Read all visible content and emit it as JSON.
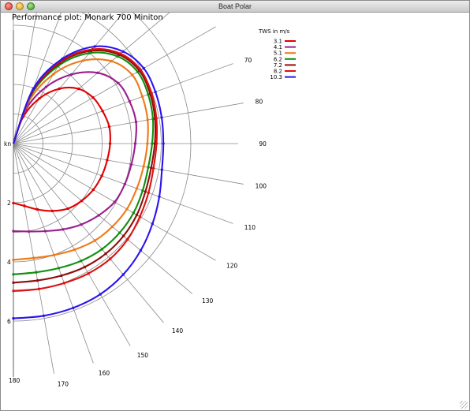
{
  "window": {
    "title": "Boat Polar",
    "buttons": {
      "close": "close-icon",
      "minimize": "minimize-icon",
      "zoom": "zoom-icon"
    }
  },
  "chart_data": {
    "type": "line",
    "projection": "polar",
    "title": "Performance plot: Monark 700 Miniton",
    "radial_unit_label": "kn",
    "radial_ticks": [
      2,
      4,
      6
    ],
    "radial_tick_labels": [
      "2",
      "4",
      "6"
    ],
    "radial_range": [
      0,
      6
    ],
    "angle_ticks": [
      70,
      80,
      90,
      100,
      110,
      120,
      130,
      140,
      150,
      160,
      170,
      180
    ],
    "angle_tick_labels": [
      "70",
      "80",
      "90",
      "100",
      "110",
      "120",
      "130",
      "140",
      "150",
      "160",
      "170",
      "180"
    ],
    "grid": true,
    "legend": {
      "title": "TWS in m/s",
      "position": "top-right"
    },
    "angles": [
      0,
      20,
      30,
      40,
      50,
      60,
      70,
      80,
      90,
      100,
      110,
      120,
      130,
      140,
      150,
      160,
      170,
      180
    ],
    "series": [
      {
        "name": "3.1",
        "color": "#e00000",
        "values": [
          0,
          0.95,
          1.76,
          2.42,
          2.88,
          3.11,
          3.21,
          3.29,
          3.27,
          3.22,
          3.18,
          3.12,
          3.01,
          2.87,
          2.63,
          2.37,
          2.14,
          2.01
        ]
      },
      {
        "name": "4.1",
        "color": "#9b1e8e",
        "values": [
          0,
          1.23,
          2.21,
          3.05,
          3.72,
          4.09,
          4.18,
          4.21,
          4.12,
          4.05,
          4.01,
          3.95,
          3.77,
          3.57,
          3.35,
          3.15,
          3.02,
          2.96
        ]
      },
      {
        "name": "5.1",
        "color": "#ee7a18",
        "values": [
          0,
          1.51,
          2.71,
          3.66,
          4.33,
          4.64,
          4.64,
          4.61,
          4.53,
          4.47,
          4.44,
          4.43,
          4.37,
          4.28,
          4.14,
          4.01,
          3.93,
          3.93
        ]
      },
      {
        "name": "6.2",
        "color": "#0d8f0d",
        "values": [
          0,
          1.76,
          3.03,
          3.99,
          4.59,
          4.85,
          4.85,
          4.79,
          4.69,
          4.63,
          4.65,
          4.69,
          4.69,
          4.66,
          4.58,
          4.48,
          4.42,
          4.42
        ]
      },
      {
        "name": "7.2",
        "color": "#8f0d0d",
        "values": [
          0,
          1.85,
          3.15,
          4.09,
          4.67,
          4.92,
          4.92,
          4.86,
          4.78,
          4.73,
          4.75,
          4.82,
          4.86,
          4.86,
          4.82,
          4.75,
          4.7,
          4.7
        ]
      },
      {
        "name": "8.2",
        "color": "#dd1111",
        "values": [
          0,
          1.91,
          3.22,
          4.16,
          4.73,
          4.97,
          4.97,
          4.91,
          4.84,
          4.81,
          4.86,
          4.94,
          5.04,
          5.09,
          5.07,
          5.02,
          4.99,
          4.98
        ]
      },
      {
        "name": "10.3",
        "color": "#2a14ee",
        "values": [
          0,
          1.98,
          3.31,
          4.28,
          4.84,
          5.09,
          5.11,
          5.09,
          5.07,
          5.1,
          5.25,
          5.43,
          5.62,
          5.78,
          5.88,
          5.91,
          5.91,
          5.91
        ]
      }
    ]
  }
}
